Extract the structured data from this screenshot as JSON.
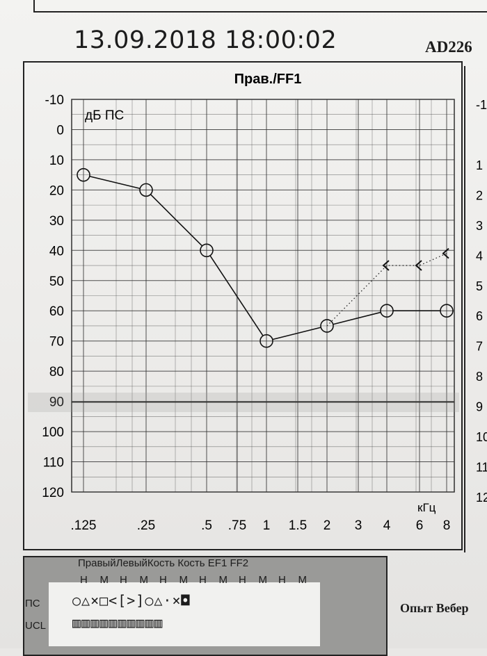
{
  "header": {
    "datetime": "13.09.2018 18:00:02",
    "device": "AD226"
  },
  "chart_data": {
    "type": "line",
    "title": "Прав./FF1",
    "ylabel": "дБ ПС",
    "xlabel": "кГц",
    "y_reversed": true,
    "ylim": [
      -10,
      120
    ],
    "y_ticks": [
      "-10",
      "0",
      "10",
      "20",
      "30",
      "40",
      "50",
      "60",
      "70",
      "80",
      "90",
      "100",
      "110",
      "120"
    ],
    "x_tick_labels": [
      ".125",
      ".25",
      ".5",
      ".75",
      "1",
      "1.5",
      "2",
      "3",
      "4",
      "6",
      "8"
    ],
    "series": [
      {
        "x": [
          ".125",
          ".25",
          ".5",
          "1",
          "2",
          "4",
          "8"
        ],
        "values": [
          15,
          20,
          40,
          70,
          65,
          60,
          60
        ],
        "marker": "circle",
        "style": "solid"
      },
      {
        "x": [
          "2",
          "4",
          "6",
          "8"
        ],
        "values": [
          65,
          45,
          45,
          41
        ],
        "marker": "bracket-left",
        "style": "dotted"
      }
    ]
  },
  "right_partial_ticks": [
    "-1",
    "1",
    "2",
    "3",
    "4",
    "5",
    "6",
    "7",
    "8",
    "9",
    "10",
    "11",
    "12"
  ],
  "legend": {
    "header": "ПравыйЛевыйКость Кость EF1     FF2",
    "hm": [
      "Н",
      "М",
      "Н",
      "М",
      "Н",
      "М",
      "Н",
      "М",
      "Н",
      "М",
      "Н",
      "М"
    ],
    "row1_label": "ПС",
    "row2_label": "UCL",
    "row1_symbols": "○△×□<[>]○△·×◘",
    "row2_symbols": "▥▥▥▥▥▥▥▥▥▥"
  },
  "weber_label": "Опыт Вебер"
}
